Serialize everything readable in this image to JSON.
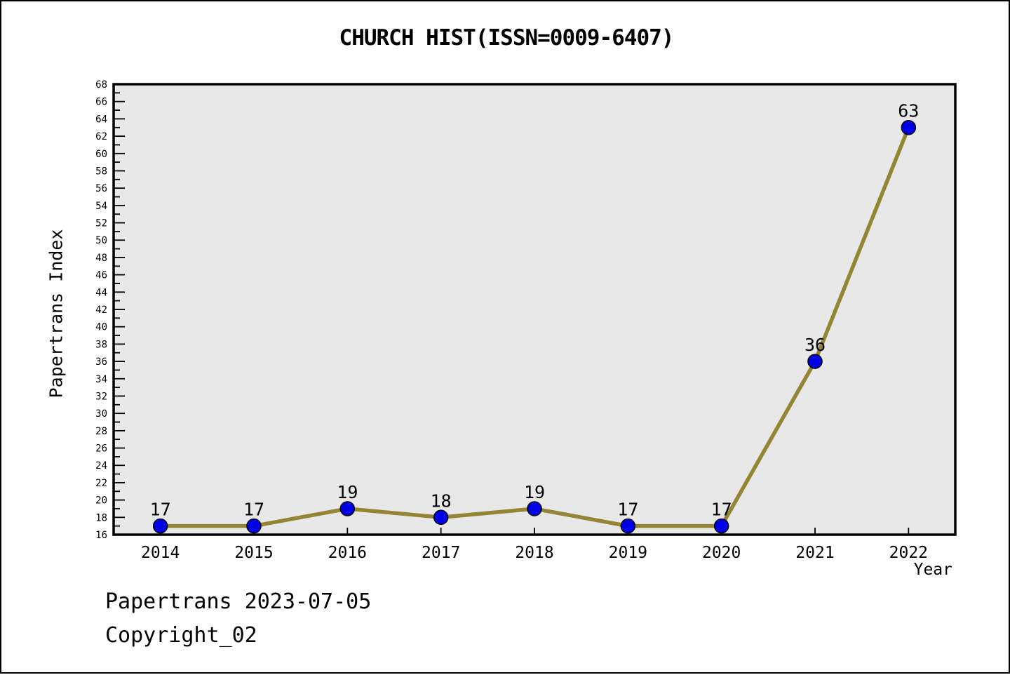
{
  "title": "CHURCH HIST(ISSN=0009-6407)",
  "footer": {
    "line1": "Papertrans 2023-07-05",
    "line2": "Copyright_02"
  },
  "colors": {
    "line": "#948434",
    "marker_fill": "#0000E6",
    "marker_edge": "#000000",
    "plot_background": "#E8E8E8",
    "axis": "#000000",
    "figure_background": "#FFFFFF"
  },
  "chart_data": {
    "type": "line",
    "x": [
      2014,
      2015,
      2016,
      2017,
      2018,
      2019,
      2020,
      2021,
      2022
    ],
    "values": [
      17,
      17,
      19,
      18,
      19,
      17,
      17,
      36,
      63
    ],
    "point_labels": [
      "17",
      "17",
      "19",
      "18",
      "19",
      "17",
      "17",
      "36",
      "63"
    ],
    "title": "CHURCH HIST(ISSN=0009-6407)",
    "xlabel": "Year",
    "ylabel": "Papertrans Index",
    "xlim": [
      2013.5,
      2022.5
    ],
    "ylim": [
      16,
      68
    ],
    "ytick_step": 2,
    "yminor_step": 1,
    "xtick_labels": [
      "2014",
      "2015",
      "2016",
      "2017",
      "2018",
      "2019",
      "2020",
      "2021",
      "2022"
    ],
    "grid": false,
    "legend": null,
    "tick_direction": "in"
  }
}
